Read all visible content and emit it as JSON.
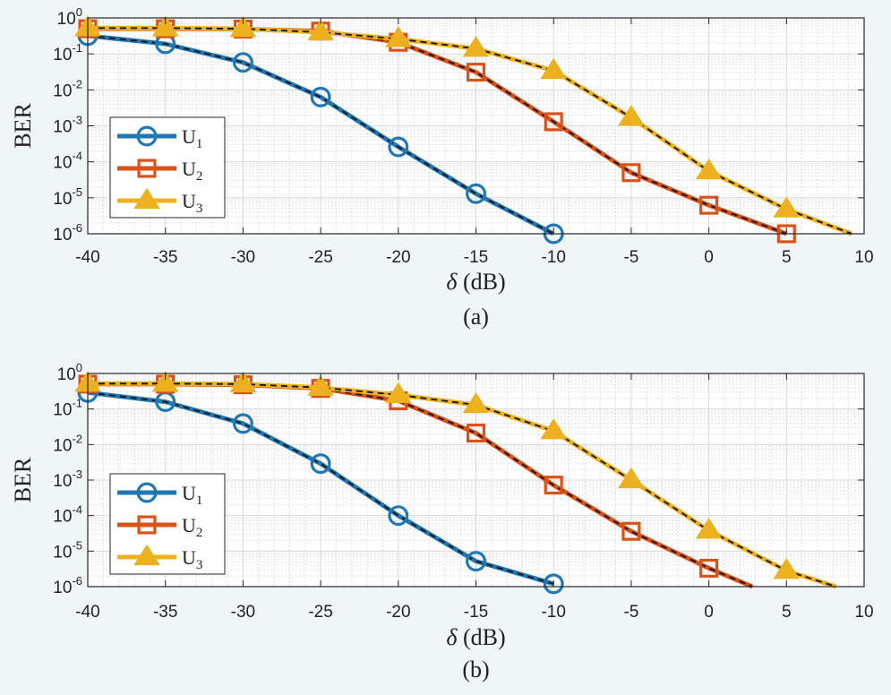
{
  "chart_data": [
    {
      "type": "line",
      "caption": "(a)",
      "title": "",
      "xlabel_symbol": "δ",
      "xlabel_unit": "(dB)",
      "ylabel": "BER",
      "xlim": [
        -40,
        10
      ],
      "ylim": [
        1e-06,
        1
      ],
      "yscale": "log",
      "grid": true,
      "legend_position": "lower-left",
      "x_ticks": [
        "-40",
        "-35",
        "-30",
        "-25",
        "-20",
        "-15",
        "-10",
        "-5",
        "0",
        "5",
        "10"
      ],
      "y_ticks": [
        {
          "base": "10",
          "exp": "0"
        },
        {
          "base": "10",
          "exp": "-1"
        },
        {
          "base": "10",
          "exp": "-2"
        },
        {
          "base": "10",
          "exp": "-3"
        },
        {
          "base": "10",
          "exp": "-4"
        },
        {
          "base": "10",
          "exp": "-5"
        },
        {
          "base": "10",
          "exp": "-6"
        }
      ],
      "series": [
        {
          "name": "U",
          "sub": "1",
          "color": "#1f77b4",
          "marker": "circle",
          "x": [
            -40,
            -35,
            -30,
            -25,
            -20,
            -15,
            -10
          ],
          "y": [
            0.32,
            0.19,
            0.058,
            0.0063,
            0.00026,
            1.3e-05,
            1e-06
          ],
          "line_x": [
            -40,
            -35,
            -30,
            -25,
            -20,
            -15,
            -10
          ],
          "line_y": [
            0.32,
            0.19,
            0.058,
            0.0063,
            0.00026,
            1.3e-05,
            1e-06
          ]
        },
        {
          "name": "U",
          "sub": "2",
          "color": "#d95319",
          "marker": "square",
          "x": [
            -40,
            -35,
            -30,
            -25,
            -20,
            -15,
            -10,
            -5,
            0,
            5
          ],
          "y": [
            0.5,
            0.5,
            0.49,
            0.43,
            0.21,
            0.031,
            0.0013,
            5e-05,
            6.2e-06,
            1e-06
          ],
          "line_x": [
            -40,
            -35,
            -30,
            -25,
            -20,
            -15,
            -10,
            -5,
            0,
            5
          ],
          "line_y": [
            0.5,
            0.5,
            0.49,
            0.43,
            0.21,
            0.031,
            0.0013,
            5e-05,
            6.2e-06,
            1e-06
          ]
        },
        {
          "name": "U",
          "sub": "3",
          "color": "#edb120",
          "marker": "triangle",
          "x": [
            -40,
            -35,
            -30,
            -25,
            -20,
            -15,
            -10,
            -5,
            0,
            5
          ],
          "y": [
            0.52,
            0.52,
            0.5,
            0.4,
            0.26,
            0.14,
            0.034,
            0.0017,
            5.5e-05,
            4.8e-06
          ],
          "line_x": [
            -40,
            -35,
            -30,
            -25,
            -20,
            -15,
            -10,
            -5,
            0,
            5,
            9.2
          ],
          "line_y": [
            0.52,
            0.52,
            0.5,
            0.4,
            0.26,
            0.14,
            0.034,
            0.0017,
            5.5e-05,
            4.8e-06,
            1e-06
          ]
        }
      ]
    },
    {
      "type": "line",
      "caption": "(b)",
      "title": "",
      "xlabel_symbol": "δ",
      "xlabel_unit": "(dB)",
      "ylabel": "BER",
      "xlim": [
        -40,
        10
      ],
      "ylim": [
        1e-06,
        1
      ],
      "yscale": "log",
      "grid": true,
      "legend_position": "lower-left",
      "x_ticks": [
        "-40",
        "-35",
        "-30",
        "-25",
        "-20",
        "-15",
        "-10",
        "-5",
        "0",
        "5",
        "10"
      ],
      "y_ticks": [
        {
          "base": "10",
          "exp": "0"
        },
        {
          "base": "10",
          "exp": "-1"
        },
        {
          "base": "10",
          "exp": "-2"
        },
        {
          "base": "10",
          "exp": "-3"
        },
        {
          "base": "10",
          "exp": "-4"
        },
        {
          "base": "10",
          "exp": "-5"
        },
        {
          "base": "10",
          "exp": "-6"
        }
      ],
      "series": [
        {
          "name": "U",
          "sub": "1",
          "color": "#1f77b4",
          "marker": "circle",
          "x": [
            -40,
            -35,
            -30,
            -25,
            -20,
            -15,
            -10
          ],
          "y": [
            0.29,
            0.16,
            0.039,
            0.0029,
            0.0001,
            5.2e-06,
            1.2e-06
          ],
          "line_x": [
            -40,
            -35,
            -30,
            -25,
            -20,
            -15,
            -10
          ],
          "line_y": [
            0.29,
            0.16,
            0.039,
            0.0029,
            0.0001,
            5.2e-06,
            1.2e-06
          ]
        },
        {
          "name": "U",
          "sub": "2",
          "color": "#d95319",
          "marker": "square",
          "x": [
            -40,
            -35,
            -30,
            -25,
            -20,
            -15,
            -10,
            -5,
            0
          ],
          "y": [
            0.5,
            0.5,
            0.48,
            0.38,
            0.17,
            0.021,
            0.00072,
            3.6e-05,
            3.3e-06
          ],
          "line_x": [
            -40,
            -35,
            -30,
            -25,
            -20,
            -15,
            -10,
            -5,
            0,
            2.8
          ],
          "line_y": [
            0.5,
            0.5,
            0.48,
            0.38,
            0.17,
            0.021,
            0.00072,
            3.6e-05,
            3.3e-06,
            1e-06
          ]
        },
        {
          "name": "U",
          "sub": "3",
          "color": "#edb120",
          "marker": "triangle",
          "x": [
            -40,
            -35,
            -30,
            -25,
            -20,
            -15,
            -10,
            -5,
            0,
            5
          ],
          "y": [
            0.52,
            0.52,
            0.5,
            0.4,
            0.25,
            0.13,
            0.024,
            0.001,
            3.8e-05,
            2.8e-06
          ],
          "line_x": [
            -40,
            -35,
            -30,
            -25,
            -20,
            -15,
            -10,
            -5,
            0,
            5,
            8.2
          ],
          "line_y": [
            0.52,
            0.52,
            0.5,
            0.4,
            0.25,
            0.13,
            0.024,
            0.001,
            3.8e-05,
            2.8e-06,
            1e-06
          ]
        }
      ]
    }
  ]
}
